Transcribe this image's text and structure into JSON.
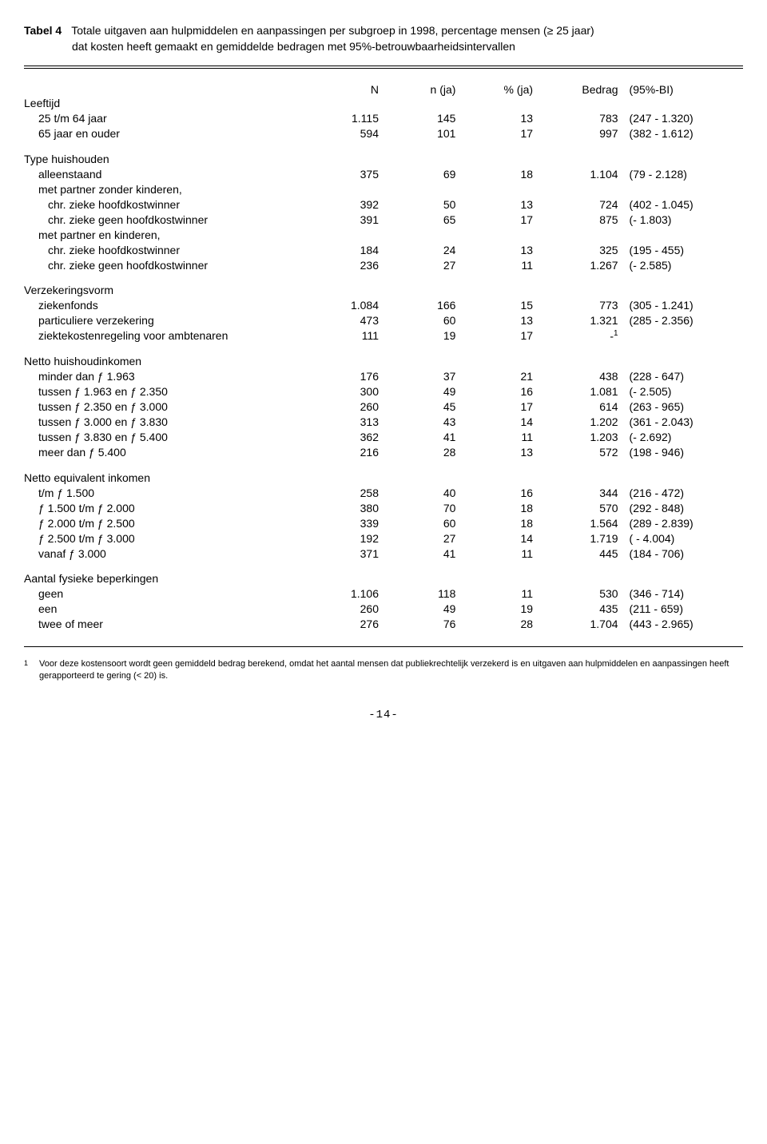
{
  "title_label": "Tabel 4",
  "title_line1": "Totale uitgaven aan hulpmiddelen en aanpassingen per subgroep in 1998, percentage mensen (≥ 25 jaar)",
  "title_line2": "dat kosten heeft gemaakt en gemiddelde bedragen met 95%-betrouwbaarheidsintervallen",
  "headers": {
    "n": "N",
    "nja": "n (ja)",
    "pja": "% (ja)",
    "bedrag": "Bedrag",
    "ci": "(95%-BI)"
  },
  "sections": [
    {
      "title": "Leeftijd",
      "rows": [
        {
          "label": "25 t/m 64 jaar",
          "indent": 1,
          "n": "1.115",
          "nja": "145",
          "pja": "13",
          "bedrag": "783",
          "ci": "(247 - 1.320)"
        },
        {
          "label": "65 jaar en ouder",
          "indent": 1,
          "n": "594",
          "nja": "101",
          "pja": "17",
          "bedrag": "997",
          "ci": "(382 - 1.612)"
        }
      ]
    },
    {
      "title": "Type huishouden",
      "rows": [
        {
          "label": "alleenstaand",
          "indent": 1,
          "n": "375",
          "nja": "69",
          "pja": "18",
          "bedrag": "1.104",
          "ci": "(79 - 2.128)"
        },
        {
          "label": "met partner zonder kinderen,",
          "indent": 1
        },
        {
          "label": "chr. zieke hoofdkostwinner",
          "indent": 2,
          "n": "392",
          "nja": "50",
          "pja": "13",
          "bedrag": "724",
          "ci": "(402 - 1.045)"
        },
        {
          "label": "chr. zieke geen hoofdkostwinner",
          "indent": 2,
          "n": "391",
          "nja": "65",
          "pja": "17",
          "bedrag": "875",
          "ci": "(- 1.803)"
        },
        {
          "label": "met partner en kinderen,",
          "indent": 1
        },
        {
          "label": "chr. zieke hoofdkostwinner",
          "indent": 2,
          "n": "184",
          "nja": "24",
          "pja": "13",
          "bedrag": "325",
          "ci": "(195 - 455)"
        },
        {
          "label": "chr. zieke geen hoofdkostwinner",
          "indent": 2,
          "n": "236",
          "nja": "27",
          "pja": "11",
          "bedrag": "1.267",
          "ci": "(- 2.585)"
        }
      ]
    },
    {
      "title": "Verzekeringsvorm",
      "rows": [
        {
          "label": "ziekenfonds",
          "indent": 1,
          "n": "1.084",
          "nja": "166",
          "pja": "15",
          "bedrag": "773",
          "ci": "(305 - 1.241)"
        },
        {
          "label": "particuliere verzekering",
          "indent": 1,
          "n": "473",
          "nja": "60",
          "pja": "13",
          "bedrag": "1.321",
          "ci": "(285 - 2.356)"
        },
        {
          "label": "ziektekostenregeling voor ambtenaren",
          "indent": 1,
          "n": "111",
          "nja": "19",
          "pja": "17",
          "bedrag_html": "-<sup>1</sup>",
          "ci": ""
        }
      ]
    },
    {
      "title": "Netto huishoudinkomen",
      "rows": [
        {
          "label": "minder dan ƒ 1.963",
          "indent": 1,
          "n": "176",
          "nja": "37",
          "pja": "21",
          "bedrag": "438",
          "ci": "(228 - 647)"
        },
        {
          "label": "tussen ƒ 1.963 en ƒ 2.350",
          "indent": 1,
          "n": "300",
          "nja": "49",
          "pja": "16",
          "bedrag": "1.081",
          "ci": "(- 2.505)"
        },
        {
          "label": "tussen ƒ 2.350 en ƒ 3.000",
          "indent": 1,
          "n": "260",
          "nja": "45",
          "pja": "17",
          "bedrag": "614",
          "ci": "(263 - 965)"
        },
        {
          "label": "tussen ƒ 3.000 en ƒ 3.830",
          "indent": 1,
          "n": "313",
          "nja": "43",
          "pja": "14",
          "bedrag": "1.202",
          "ci": "(361 - 2.043)"
        },
        {
          "label": "tussen ƒ 3.830 en ƒ 5.400",
          "indent": 1,
          "n": "362",
          "nja": "41",
          "pja": "11",
          "bedrag": "1.203",
          "ci": "(- 2.692)"
        },
        {
          "label": "meer dan ƒ 5.400",
          "indent": 1,
          "n": "216",
          "nja": "28",
          "pja": "13",
          "bedrag": "572",
          "ci": "(198 - 946)"
        }
      ]
    },
    {
      "title": "Netto equivalent inkomen",
      "rows": [
        {
          "label": "t/m ƒ 1.500",
          "indent": 1,
          "n": "258",
          "nja": "40",
          "pja": "16",
          "bedrag": "344",
          "ci": "(216 - 472)"
        },
        {
          "label": "ƒ 1.500 t/m ƒ 2.000",
          "indent": 1,
          "n": "380",
          "nja": "70",
          "pja": "18",
          "bedrag": "570",
          "ci": "(292 - 848)"
        },
        {
          "label": "ƒ 2.000 t/m ƒ 2.500",
          "indent": 1,
          "n": "339",
          "nja": "60",
          "pja": "18",
          "bedrag": "1.564",
          "ci": "(289 - 2.839)"
        },
        {
          "label": "ƒ 2.500 t/m ƒ 3.000",
          "indent": 1,
          "n": "192",
          "nja": "27",
          "pja": "14",
          "bedrag": "1.719",
          "ci": "( - 4.004)"
        },
        {
          "label": "vanaf ƒ 3.000",
          "indent": 1,
          "n": "371",
          "nja": "41",
          "pja": "11",
          "bedrag": "445",
          "ci": "(184 - 706)"
        }
      ]
    },
    {
      "title": "Aantal fysieke beperkingen",
      "rows": [
        {
          "label": "geen",
          "indent": 1,
          "n": "1.106",
          "nja": "118",
          "pja": "11",
          "bedrag": "530",
          "ci": "(346 - 714)"
        },
        {
          "label": "een",
          "indent": 1,
          "n": "260",
          "nja": "49",
          "pja": "19",
          "bedrag": "435",
          "ci": "(211 - 659)"
        },
        {
          "label": "twee of meer",
          "indent": 1,
          "n": "276",
          "nja": "76",
          "pja": "28",
          "bedrag": "1.704",
          "ci": "(443 - 2.965)"
        }
      ]
    }
  ],
  "footnote_marker": "1",
  "footnote": "Voor deze kostensoort wordt geen gemiddeld bedrag berekend, omdat het aantal mensen dat publiekrechtelijk verzekerd is en uitgaven aan hulpmiddelen en aanpassingen heeft gerapporteerd te gering (< 20) is.",
  "page_number": "-14-"
}
